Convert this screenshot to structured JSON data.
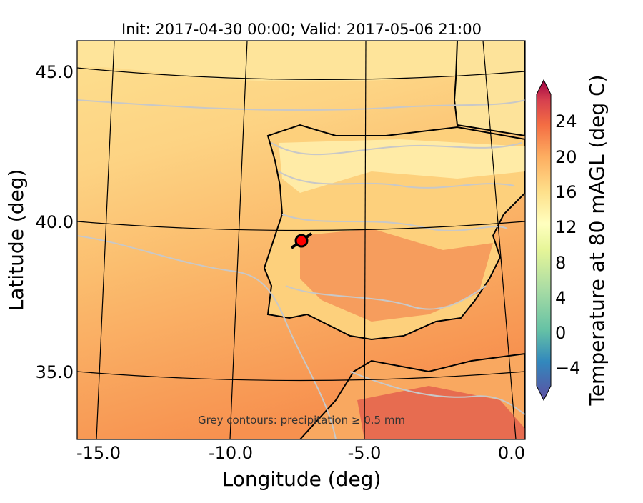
{
  "title": "Init: 2017-04-30 00:00; Valid: 2017-05-06 21:00",
  "annotation": "Grey contours: precipitation ≥ 0.5 mm",
  "xaxis": {
    "label": "Longitude (deg)",
    "ticks": [
      "-15.0",
      "-10.0",
      "-5.0",
      "0.0"
    ]
  },
  "yaxis": {
    "label": "Latitude (deg)",
    "ticks": [
      "45.0",
      "40.0",
      "35.0"
    ]
  },
  "colorbar": {
    "label": "Temperature at 80 mAGL (deg C)",
    "ticks": [
      "24",
      "20",
      "16",
      "12",
      "8",
      "4",
      "0",
      "−4"
    ],
    "range": [
      -6,
      28
    ],
    "colormap": "Spectral_r"
  },
  "marker": {
    "lon": -7.6,
    "lat": 39.4,
    "color": "#ff0000"
  },
  "colors": {
    "sea_north": "#fdd88a",
    "sea_mid": "#fbbd6e",
    "sea_south": "#f89a55",
    "land": "#fdbf6f",
    "land_warm": "#f4794a",
    "precip": "#c8c8c8"
  }
}
